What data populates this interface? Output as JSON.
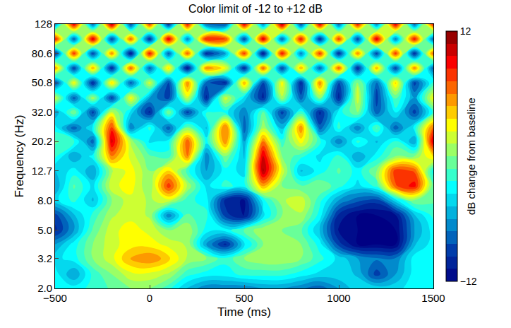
{
  "chart_data": {
    "type": "contour",
    "title": "Color limit of -12 to +12 dB",
    "x_label": "Time (ms)",
    "y_label": "Frequency (Hz)",
    "log": "y",
    "x": [
      -500,
      -400,
      -300,
      -200,
      -100,
      0,
      100,
      200,
      300,
      400,
      500,
      600,
      700,
      800,
      900,
      1000,
      1100,
      1200,
      1300,
      1400,
      1500
    ],
    "y": [
      2.0,
      2.5,
      3.2,
      4.0,
      5.0,
      6.3,
      8.0,
      10,
      12.7,
      16,
      20.2,
      25,
      32,
      40,
      50.8,
      64,
      80.6,
      101,
      128
    ],
    "z": [
      [
        -3,
        -3,
        -2,
        -1,
        0,
        0,
        -2,
        -5,
        -7,
        -7,
        -7,
        -6,
        -6,
        -7,
        -8,
        -6,
        -4,
        -4,
        -4,
        -3,
        -3
      ],
      [
        -3,
        -6,
        -2,
        0,
        2,
        2,
        1,
        -2,
        -3,
        -3,
        -2,
        -2,
        -2,
        -3,
        -4,
        -4,
        -5,
        -9,
        -6,
        -3,
        -3
      ],
      [
        -4,
        -3,
        0,
        2,
        5,
        6,
        4,
        1,
        0,
        -2,
        0,
        1,
        1,
        0,
        -2,
        -4,
        -6,
        -7,
        -7,
        -3,
        -3
      ],
      [
        -6,
        -3,
        0,
        2,
        3,
        3,
        2,
        1,
        -6,
        -10,
        -4,
        0,
        1,
        0,
        -3,
        -9,
        -12,
        -12,
        -12,
        -5,
        -3
      ],
      [
        -10,
        -6,
        -1,
        2,
        3,
        2,
        0,
        1,
        -3,
        -3,
        -1,
        1,
        0,
        -1,
        -5,
        -11,
        -12,
        -12,
        -12,
        -6,
        -3
      ],
      [
        -9,
        -5,
        -2,
        1,
        2,
        1,
        -7,
        -1,
        -2,
        -9,
        -11,
        -4,
        0,
        1,
        -3,
        -10,
        -12,
        -12,
        -11,
        -5,
        -2
      ],
      [
        -4,
        -2,
        -5,
        0,
        2,
        1,
        2,
        -2,
        -3,
        -10,
        -11,
        -3,
        1,
        2,
        -2,
        -6,
        -8,
        -9,
        -4,
        0,
        -1
      ],
      [
        -6,
        -1,
        -4,
        2,
        3,
        0,
        8,
        1,
        -4,
        -2,
        -3,
        5,
        0,
        -1,
        0,
        -2,
        -4,
        -2,
        7,
        9,
        -1
      ],
      [
        -5,
        -3,
        -6,
        1,
        3,
        0,
        4,
        -2,
        -6,
        -3,
        -4,
        11,
        2,
        -5,
        -3,
        -1,
        -3,
        0,
        8,
        7,
        -3
      ],
      [
        -2,
        -6,
        -3,
        6,
        2,
        -1,
        -2,
        6,
        -7,
        0,
        -5,
        10,
        0,
        -2,
        -4,
        -2,
        -6,
        -3,
        0,
        0,
        4
      ],
      [
        -1,
        -2,
        -8,
        10,
        1,
        -4,
        -3,
        7,
        -3,
        6,
        -6,
        6,
        -2,
        3,
        -2,
        -7,
        -2,
        -5,
        -2,
        -6,
        10
      ],
      [
        -3,
        -8,
        -3,
        8,
        -7,
        -2,
        -8,
        0,
        -5,
        7,
        -8,
        1,
        -5,
        6,
        -8,
        -2,
        -7,
        -1,
        -8,
        -3,
        7
      ],
      [
        -6,
        0,
        -9,
        2,
        -4,
        -10,
        0,
        -9,
        -2,
        -3,
        -7,
        -1,
        -9,
        -2,
        -10,
        -3,
        0,
        -8,
        -3,
        -9,
        -2
      ],
      [
        2,
        -8,
        1,
        -9,
        3,
        -6,
        -9,
        2,
        -10,
        2,
        -4,
        -10,
        1,
        -8,
        0,
        -10,
        2,
        -9,
        -1,
        -6,
        3
      ],
      [
        -9,
        3,
        -10,
        4,
        -8,
        2,
        -9,
        6,
        -8,
        -10,
        5,
        -9,
        3,
        -10,
        6,
        -9,
        1,
        -8,
        4,
        -9,
        -2
      ],
      [
        6,
        -9,
        5,
        -10,
        7,
        -8,
        4,
        -11,
        6,
        3,
        -10,
        7,
        -9,
        5,
        -8,
        7,
        -10,
        5,
        -9,
        6,
        -8
      ],
      [
        -10,
        8,
        -9,
        6,
        -11,
        9,
        -8,
        7,
        -10,
        -6,
        8,
        -11,
        9,
        -7,
        8,
        -10,
        6,
        -9,
        8,
        -10,
        7
      ],
      [
        9,
        -8,
        10,
        -9,
        7,
        -10,
        10,
        -7,
        9,
        8,
        -9,
        10,
        -8,
        9,
        -10,
        8,
        -9,
        10,
        -7,
        9,
        -8
      ],
      [
        -7,
        10,
        -8,
        11,
        -9,
        8,
        -10,
        9,
        -8,
        -9,
        10,
        -7,
        11,
        -9,
        10,
        -8,
        9,
        -7,
        10,
        -8,
        9
      ]
    ],
    "xlim": [
      -500,
      1500
    ],
    "xticks": [
      -500,
      0,
      500,
      1000,
      1500
    ],
    "ylim": [
      2,
      128
    ],
    "yticks": [
      {
        "value": 2,
        "label": "2.0"
      },
      3.2,
      {
        "value": 5,
        "label": "5.0"
      },
      {
        "value": 8,
        "label": "8.0"
      },
      12.7,
      20.2,
      {
        "value": 32,
        "label": "32.0"
      },
      50.8,
      80.6,
      128
    ],
    "colorbar": {
      "label": "dB change from baseline",
      "range": [
        -12,
        12
      ],
      "ticks": [
        -12,
        12
      ]
    }
  }
}
